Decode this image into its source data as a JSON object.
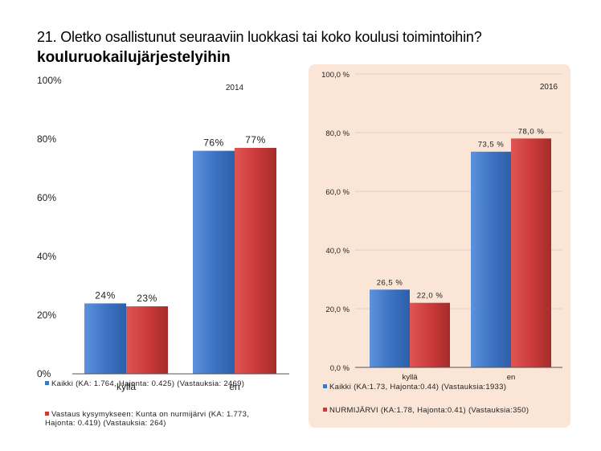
{
  "title": {
    "question": "21. Oletko osallistunut seuraaviin luokkasi tai koko koulusi toimintoihin?",
    "subject": "kouluruokailujärjestelyihin"
  },
  "colors": {
    "blue": "#3d74c4",
    "red": "#cc3b3a"
  },
  "chart_data": [
    {
      "type": "bar",
      "year": "2014",
      "categories": [
        "kyllä",
        "en"
      ],
      "series": [
        {
          "name": "Kaikki (KA: 1.764, Hajonta: 0.425) (Vastauksia: 2469)",
          "color": "blue",
          "values": [
            24,
            76
          ],
          "labels": [
            "24%",
            "76%"
          ]
        },
        {
          "name": "Vastaus kysymykseen: Kunta on nurmijärvi (KA: 1.773, Hajonta: 0.419) (Vastauksia: 264)",
          "color": "red",
          "values": [
            23,
            77
          ],
          "labels": [
            "23%",
            "77%"
          ]
        }
      ],
      "ylim": [
        0,
        100
      ],
      "yticks": [
        0,
        20,
        40,
        60,
        80,
        100
      ],
      "ytick_labels": [
        "0%",
        "20%",
        "40%",
        "60%",
        "80%",
        "100%"
      ],
      "legend_position": "bottom"
    },
    {
      "type": "bar",
      "year": "2016",
      "categories": [
        "kyllä",
        "en"
      ],
      "series": [
        {
          "name": "Kaikki (KA:1.73, Hajonta:0.44) (Vastauksia:1933)",
          "color": "blue",
          "values": [
            26.5,
            73.5
          ],
          "labels": [
            "26,5 %",
            "73,5 %"
          ]
        },
        {
          "name": "NURMIJÄRVI (KA:1.78, Hajonta:0.41) (Vastauksia:350)",
          "color": "red",
          "values": [
            22.0,
            78.0
          ],
          "labels": [
            "22,0 %",
            "78,0 %"
          ]
        }
      ],
      "ylim": [
        0,
        100
      ],
      "yticks": [
        0,
        20,
        40,
        60,
        80,
        100
      ],
      "ytick_labels": [
        "0,0 %",
        "20,0 %",
        "40,0 %",
        "60,0 %",
        "80,0 %",
        "100,0 %"
      ],
      "gridlines": true,
      "legend_position": "bottom"
    }
  ]
}
